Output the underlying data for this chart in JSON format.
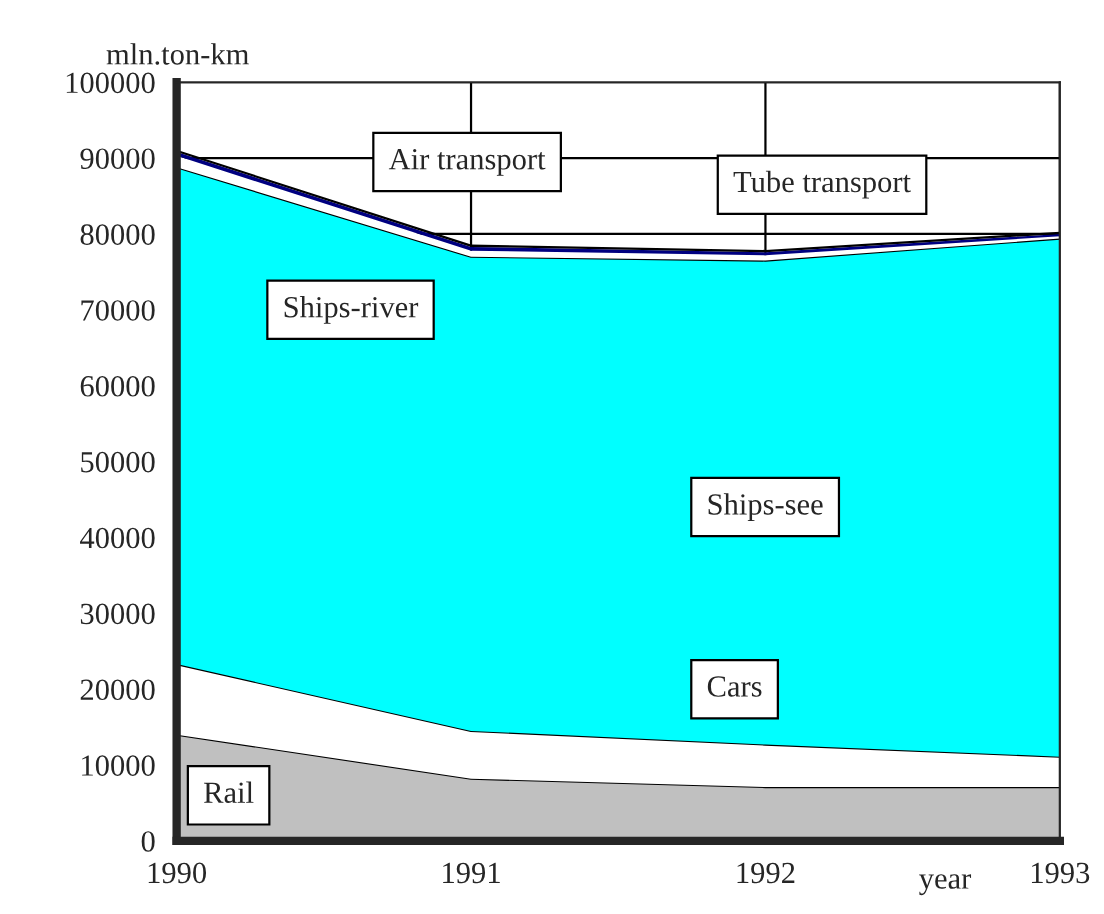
{
  "chart_data": {
    "type": "area",
    "stacked": true,
    "xlabel": "year",
    "ylabel": "mln.ton-km",
    "x": [
      1990,
      1991,
      1992,
      1993
    ],
    "series": [
      {
        "name": "Rail",
        "color": "#c0c0c0",
        "values": [
          14000,
          8200,
          7100,
          7100
        ]
      },
      {
        "name": "Cars",
        "color": "#ffffff",
        "values": [
          9300,
          6300,
          5600,
          4000
        ]
      },
      {
        "name": "Ships-see",
        "color": "#00ffff",
        "values": [
          65500,
          62500,
          63800,
          68300
        ]
      },
      {
        "name": "Ships-river",
        "color": "#ffffff",
        "values": [
          1500,
          800,
          700,
          300
        ]
      },
      {
        "name": "Air transport",
        "color": "#000080",
        "values": [
          500,
          500,
          400,
          300
        ]
      },
      {
        "name": "Tube transport",
        "color": "#000000",
        "values": [
          300,
          300,
          300,
          300
        ]
      }
    ],
    "xlim": [
      1990,
      1993
    ],
    "xticks": [
      1990,
      1991,
      1992,
      1993
    ],
    "ylim": [
      0,
      100000
    ],
    "yticks": [
      0,
      10000,
      20000,
      30000,
      40000,
      50000,
      60000,
      70000,
      80000,
      90000,
      100000
    ],
    "grid": true,
    "legend": false
  }
}
